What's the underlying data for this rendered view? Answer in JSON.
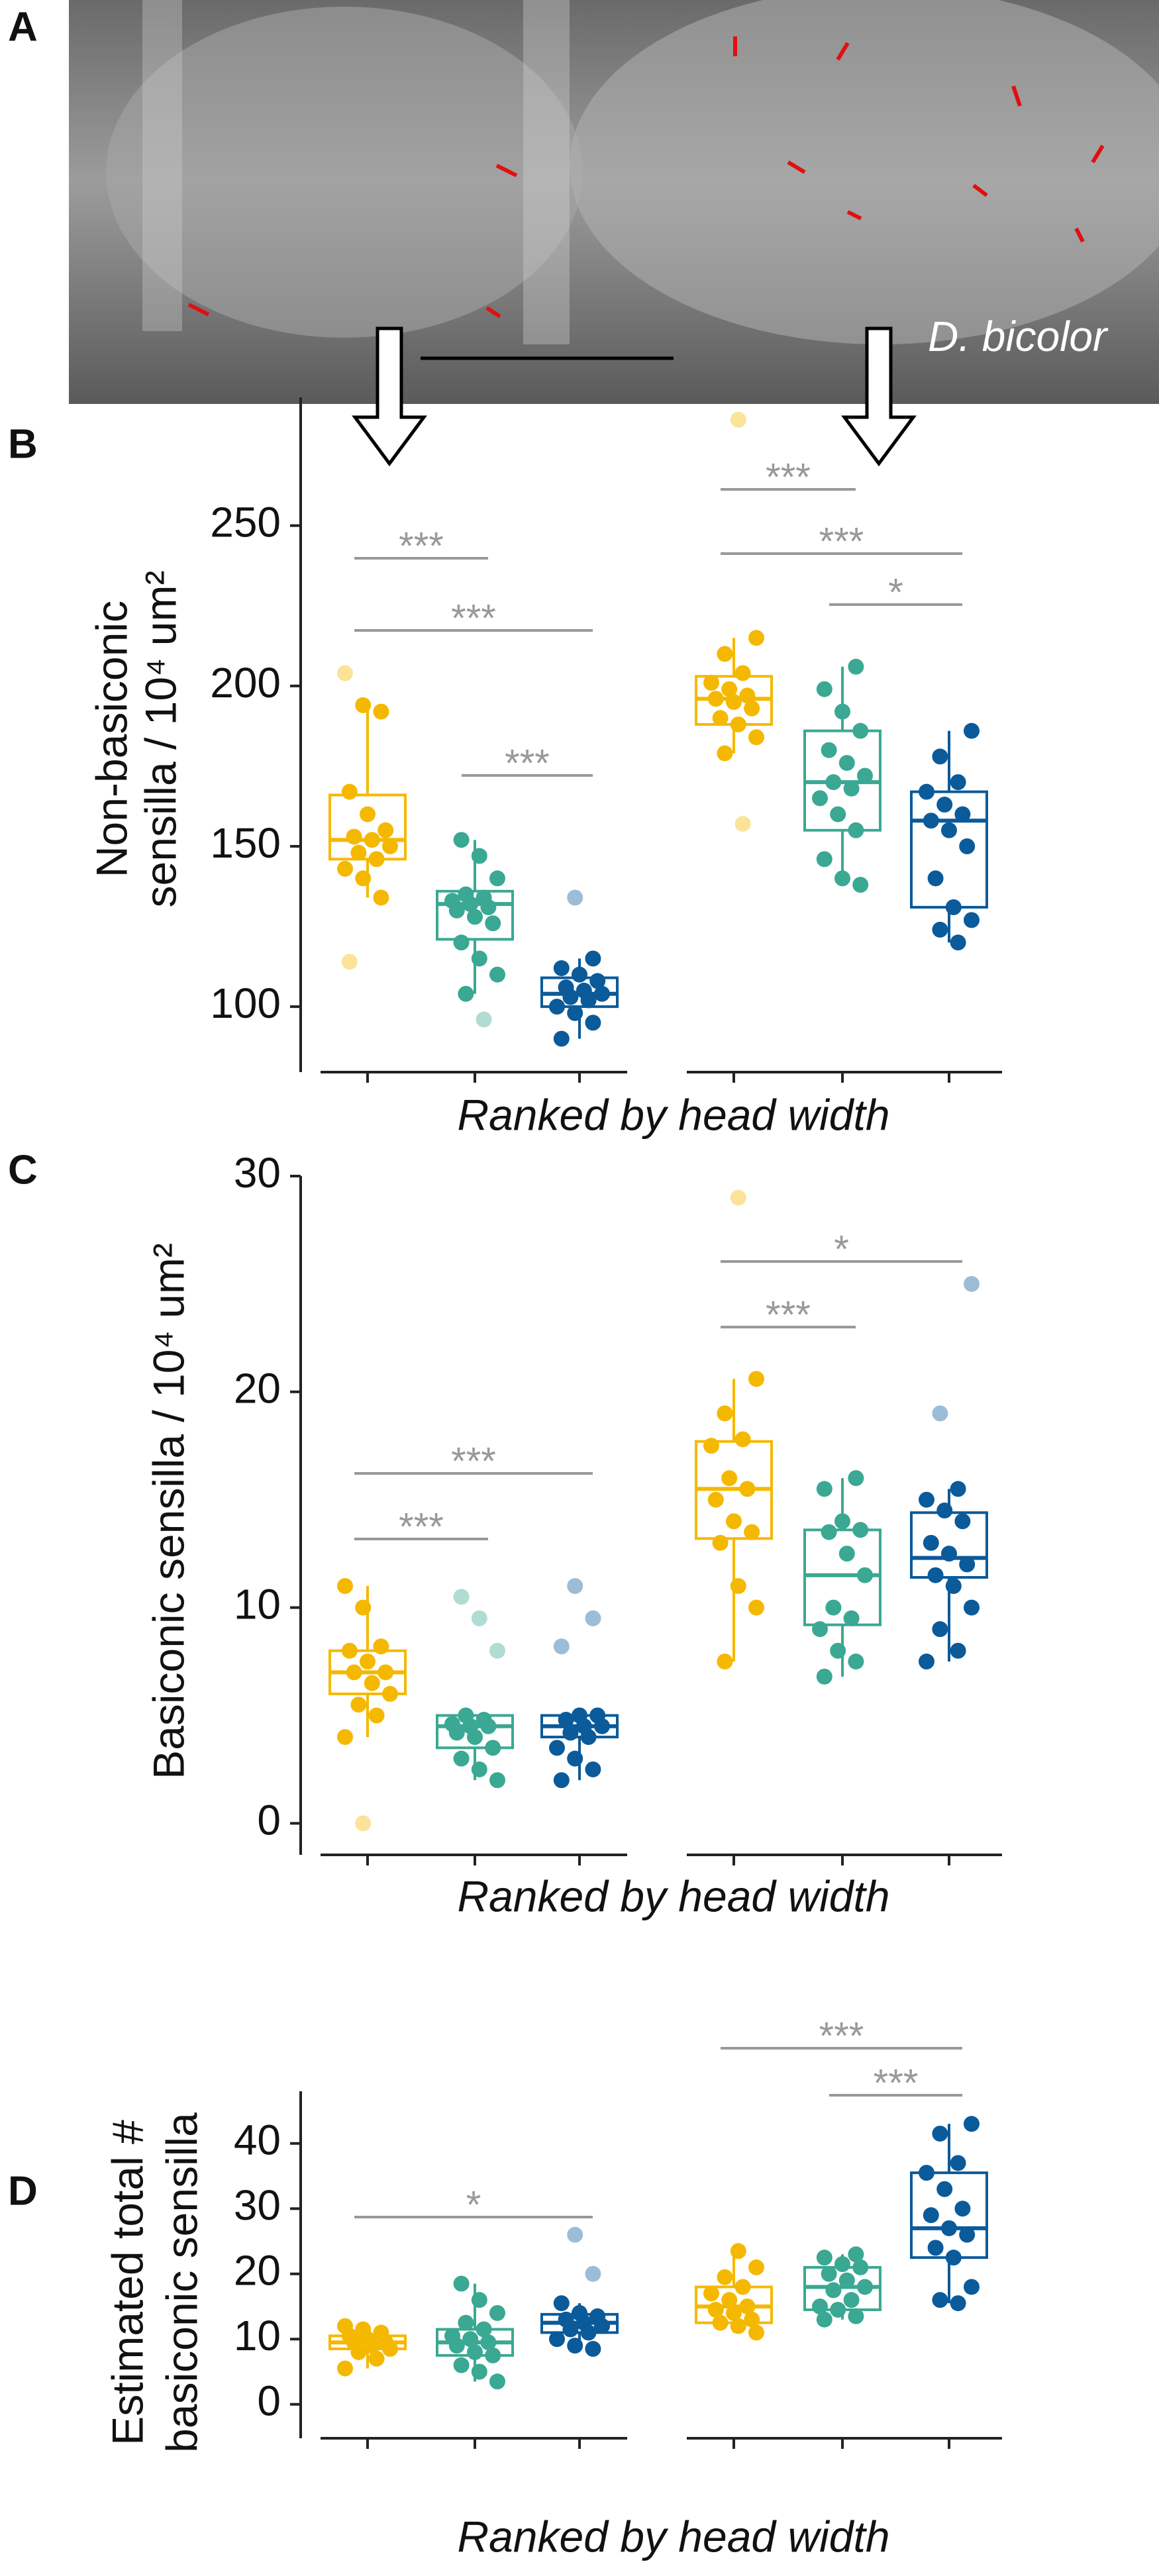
{
  "photo": {
    "label": "A",
    "caption": "D. bicolor"
  },
  "chart_data": [
    {
      "type": "box",
      "panel_label": "B",
      "ylabel": [
        "Non-basiconic",
        "sensilla / 10⁴ um²"
      ],
      "xlabel": "Ranked by head width",
      "ylim": [
        80,
        290
      ],
      "yticks": [
        100,
        150,
        200,
        250
      ],
      "boxes": [
        {
          "color": "#f5b800",
          "min": 134,
          "q1": 146,
          "median": 152,
          "q3": 166,
          "max": 194,
          "points": [
            204,
            194,
            192,
            167,
            160,
            155,
            153,
            152,
            150,
            148,
            146,
            143,
            140,
            134,
            114
          ]
        },
        {
          "color": "#3aa892",
          "min": 104,
          "q1": 121,
          "median": 132,
          "q3": 136,
          "max": 152,
          "points": [
            152,
            147,
            140,
            135,
            134,
            133,
            132,
            131,
            130,
            128,
            126,
            120,
            115,
            110,
            104,
            96
          ]
        },
        {
          "color": "#0b5a9a",
          "min": 90,
          "q1": 100,
          "median": 104,
          "q3": 109,
          "max": 115,
          "points": [
            134,
            115,
            112,
            110,
            108,
            106,
            105,
            104,
            103,
            102,
            100,
            98,
            95,
            90
          ]
        },
        {
          "color": "#f5b800",
          "min": 179,
          "q1": 188,
          "median": 196,
          "q3": 203,
          "max": 215,
          "points": [
            283,
            215,
            210,
            204,
            201,
            199,
            197,
            196,
            195,
            193,
            190,
            188,
            184,
            179,
            157
          ]
        },
        {
          "color": "#3aa892",
          "min": 138,
          "q1": 155,
          "median": 170,
          "q3": 186,
          "max": 206,
          "points": [
            206,
            199,
            192,
            186,
            180,
            176,
            172,
            170,
            168,
            165,
            160,
            155,
            146,
            140,
            138
          ]
        },
        {
          "color": "#0b5a9a",
          "min": 120,
          "q1": 131,
          "median": 158,
          "q3": 167,
          "max": 186,
          "points": [
            186,
            178,
            170,
            167,
            163,
            160,
            158,
            155,
            150,
            140,
            131,
            127,
            124,
            120
          ]
        }
      ],
      "annotations": [
        {
          "text": "***",
          "between": [
            0,
            1
          ]
        },
        {
          "text": "***",
          "between": [
            0,
            2
          ]
        },
        {
          "text": "***",
          "between": [
            1,
            2
          ]
        },
        {
          "text": "***",
          "between": [
            3,
            4
          ]
        },
        {
          "text": "***",
          "between": [
            3,
            5
          ]
        },
        {
          "text": "*",
          "between": [
            4,
            5
          ]
        }
      ]
    },
    {
      "type": "box",
      "panel_label": "C",
      "ylabel": [
        "Basiconic sensilla / 10⁴ um²"
      ],
      "xlabel": "Ranked by head width",
      "ylim": [
        -1.4,
        30
      ],
      "yticks": [
        0,
        10,
        20,
        30
      ],
      "boxes": [
        {
          "color": "#f5b800",
          "min": 4,
          "q1": 6,
          "median": 7,
          "q3": 8,
          "max": 11,
          "points": [
            11,
            10,
            8.2,
            8,
            7.5,
            7,
            7,
            6.5,
            6,
            5.5,
            5,
            4,
            0
          ]
        },
        {
          "color": "#3aa892",
          "min": 2,
          "q1": 3.5,
          "median": 4.5,
          "q3": 5,
          "max": 5,
          "points": [
            10.5,
            9.5,
            8,
            5,
            4.8,
            4.6,
            4.5,
            4.5,
            4.2,
            4,
            3.5,
            3,
            2.5,
            2
          ]
        },
        {
          "color": "#0b5a9a",
          "min": 2,
          "q1": 4,
          "median": 4.5,
          "q3": 5,
          "max": 5,
          "points": [
            11,
            9.5,
            8.2,
            5,
            5,
            4.8,
            4.5,
            4.5,
            4.2,
            4,
            3.5,
            3,
            2.5,
            2
          ]
        },
        {
          "color": "#f5b800",
          "min": 7.5,
          "q1": 13.2,
          "median": 15.5,
          "q3": 17.7,
          "max": 20.6,
          "points": [
            29,
            20.6,
            19,
            17.8,
            17.5,
            16,
            15.5,
            15,
            14,
            13.5,
            13,
            11,
            10,
            7.5
          ]
        },
        {
          "color": "#3aa892",
          "min": 6.8,
          "q1": 9.2,
          "median": 11.5,
          "q3": 13.6,
          "max": 16,
          "points": [
            16,
            15.5,
            14,
            13.6,
            13.5,
            12.5,
            11.5,
            10,
            9.5,
            9,
            8,
            7.5,
            6.8
          ]
        },
        {
          "color": "#0b5a9a",
          "min": 7.5,
          "q1": 11.4,
          "median": 12.3,
          "q3": 14.4,
          "max": 15.5,
          "points": [
            25,
            19,
            15.5,
            15,
            14.5,
            14,
            13,
            12.5,
            12,
            11.5,
            11,
            10,
            9,
            8,
            7.5
          ]
        }
      ],
      "annotations": [
        {
          "text": "***",
          "between": [
            0,
            1
          ]
        },
        {
          "text": "***",
          "between": [
            0,
            2
          ]
        },
        {
          "text": "***",
          "between": [
            3,
            4
          ]
        },
        {
          "text": "*",
          "between": [
            3,
            5
          ]
        }
      ]
    },
    {
      "type": "box",
      "panel_label": "D",
      "ylabel": [
        "Estimated total #",
        "basiconic sensilla"
      ],
      "xlabel": "Ranked by head width",
      "ylim": [
        -5,
        48
      ],
      "yticks": [
        0,
        10,
        20,
        30,
        40
      ],
      "boxes": [
        {
          "color": "#f5b800",
          "min": 5.5,
          "q1": 8.5,
          "median": 9.5,
          "q3": 10.5,
          "max": 12,
          "points": [
            12,
            11.5,
            11,
            10.5,
            10,
            9.5,
            9.5,
            9,
            8.5,
            8,
            7,
            5.5
          ]
        },
        {
          "color": "#3aa892",
          "min": 3.5,
          "q1": 7.5,
          "median": 9.5,
          "q3": 11.5,
          "max": 18.5,
          "points": [
            18.5,
            16,
            14,
            12.5,
            11.5,
            10.5,
            10,
            9.5,
            9,
            8,
            7.5,
            6,
            5,
            3.5
          ]
        },
        {
          "color": "#0b5a9a",
          "min": 8.5,
          "q1": 11,
          "median": 12.5,
          "q3": 13.8,
          "max": 15.5,
          "points": [
            26,
            20,
            15.5,
            14,
            13.5,
            13,
            12.5,
            12,
            11.5,
            11,
            10,
            9,
            8.5
          ]
        },
        {
          "color": "#f5b800",
          "min": 11,
          "q1": 12.5,
          "median": 15,
          "q3": 18,
          "max": 23.5,
          "points": [
            23.5,
            21,
            19.5,
            18,
            17,
            16,
            15,
            14.5,
            14,
            13,
            12.5,
            12,
            11
          ]
        },
        {
          "color": "#3aa892",
          "min": 13,
          "q1": 14.5,
          "median": 18,
          "q3": 21,
          "max": 23,
          "points": [
            23,
            22.5,
            21.5,
            21,
            20,
            19,
            18,
            17.5,
            16,
            15,
            14.5,
            13.5,
            13
          ]
        },
        {
          "color": "#0b5a9a",
          "min": 15.5,
          "q1": 22.5,
          "median": 27,
          "q3": 35.5,
          "max": 43,
          "points": [
            43,
            41.5,
            37,
            35.5,
            33,
            30,
            29,
            27,
            26,
            24,
            22.5,
            18,
            16,
            15.5
          ]
        }
      ],
      "annotations": [
        {
          "text": "*",
          "between": [
            0,
            2
          ]
        },
        {
          "text": "***",
          "between": [
            3,
            5
          ]
        },
        {
          "text": "***",
          "between": [
            4,
            5
          ]
        }
      ]
    }
  ]
}
